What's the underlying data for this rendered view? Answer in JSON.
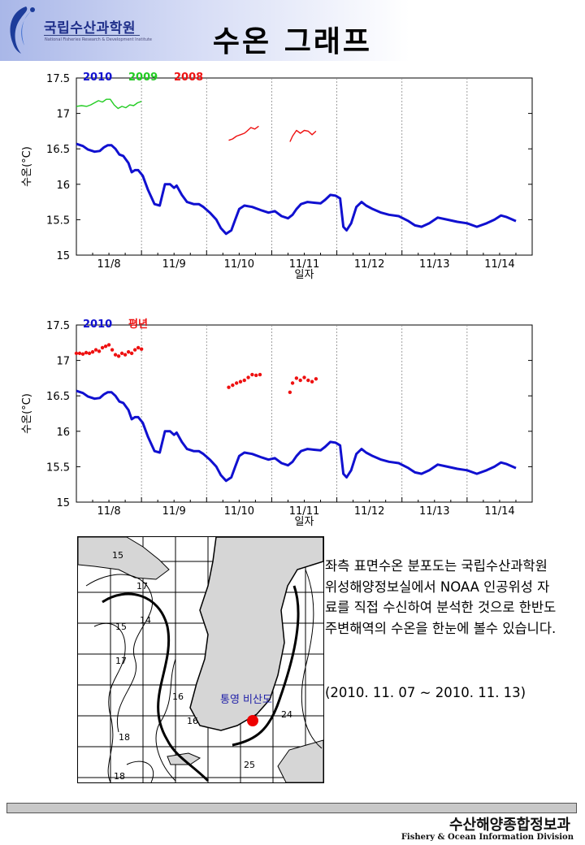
{
  "header": {
    "org_name": "국립수산과학원",
    "org_subtitle": "National Fisheries Research & Development Institute",
    "title": "수온 그래프"
  },
  "colors": {
    "series_2010": "#1010d0",
    "series_2009": "#22cc22",
    "series_2008": "#ee1111",
    "series_normal": "#ee1111",
    "grid": "#888888"
  },
  "chart_data": [
    {
      "type": "line",
      "xlabel": "일자",
      "ylabel": "수온(°C)",
      "ylim": [
        15,
        17.5
      ],
      "yticks": [
        "15",
        "15.5",
        "16",
        "16.5",
        "17",
        "17.5"
      ],
      "xticks": [
        "11/8",
        "11/9",
        "11/10",
        "11/11",
        "11/12",
        "11/13",
        "11/14"
      ],
      "xlim_days": [
        0,
        7
      ],
      "grid": "vertical dotted at day boundaries",
      "legend_position": "top-left",
      "series": [
        {
          "name": "2010",
          "color": "#1010d0",
          "style": "line",
          "points": [
            [
              0,
              16.57
            ],
            [
              0.1,
              16.54
            ],
            [
              0.18,
              16.49
            ],
            [
              0.28,
              16.46
            ],
            [
              0.36,
              16.47
            ],
            [
              0.42,
              16.52
            ],
            [
              0.48,
              16.55
            ],
            [
              0.54,
              16.55
            ],
            [
              0.6,
              16.5
            ],
            [
              0.66,
              16.42
            ],
            [
              0.72,
              16.4
            ],
            [
              0.8,
              16.3
            ],
            [
              0.85,
              16.17
            ],
            [
              0.9,
              16.2
            ],
            [
              0.95,
              16.2
            ],
            [
              1.02,
              16.12
            ],
            [
              1.1,
              15.92
            ],
            [
              1.2,
              15.72
            ],
            [
              1.28,
              15.7
            ],
            [
              1.36,
              16.0
            ],
            [
              1.44,
              16.0
            ],
            [
              1.5,
              15.95
            ],
            [
              1.54,
              15.98
            ],
            [
              1.62,
              15.85
            ],
            [
              1.7,
              15.75
            ],
            [
              1.8,
              15.72
            ],
            [
              1.88,
              15.72
            ],
            [
              1.95,
              15.68
            ],
            [
              2.05,
              15.6
            ],
            [
              2.15,
              15.5
            ],
            [
              2.22,
              15.38
            ],
            [
              2.3,
              15.3
            ],
            [
              2.38,
              15.35
            ],
            [
              2.44,
              15.5
            ],
            [
              2.5,
              15.65
            ],
            [
              2.58,
              15.7
            ],
            [
              2.7,
              15.68
            ],
            [
              2.85,
              15.63
            ],
            [
              2.95,
              15.6
            ],
            [
              3.05,
              15.62
            ],
            [
              3.15,
              15.55
            ],
            [
              3.25,
              15.52
            ],
            [
              3.32,
              15.57
            ],
            [
              3.38,
              15.65
            ],
            [
              3.45,
              15.72
            ],
            [
              3.55,
              15.75
            ],
            [
              3.65,
              15.74
            ],
            [
              3.75,
              15.73
            ],
            [
              3.82,
              15.78
            ],
            [
              3.9,
              15.85
            ],
            [
              3.98,
              15.84
            ],
            [
              4.05,
              15.8
            ],
            [
              4.1,
              15.4
            ],
            [
              4.15,
              15.35
            ],
            [
              4.22,
              15.45
            ],
            [
              4.3,
              15.68
            ],
            [
              4.38,
              15.75
            ],
            [
              4.45,
              15.7
            ],
            [
              4.55,
              15.65
            ],
            [
              4.68,
              15.6
            ],
            [
              4.8,
              15.57
            ],
            [
              4.95,
              15.55
            ],
            [
              5.1,
              15.48
            ],
            [
              5.2,
              15.42
            ],
            [
              5.3,
              15.4
            ],
            [
              5.42,
              15.45
            ],
            [
              5.55,
              15.53
            ],
            [
              5.7,
              15.5
            ],
            [
              5.85,
              15.47
            ],
            [
              6.0,
              15.45
            ],
            [
              6.15,
              15.4
            ],
            [
              6.3,
              15.45
            ],
            [
              6.42,
              15.5
            ],
            [
              6.52,
              15.56
            ],
            [
              6.6,
              15.54
            ],
            [
              6.7,
              15.5
            ],
            [
              6.75,
              15.48
            ]
          ]
        },
        {
          "name": "2009",
          "color": "#22cc22",
          "style": "line",
          "points": [
            [
              0,
              17.1
            ],
            [
              0.08,
              17.11
            ],
            [
              0.16,
              17.1
            ],
            [
              0.22,
              17.12
            ],
            [
              0.28,
              17.15
            ],
            [
              0.34,
              17.18
            ],
            [
              0.4,
              17.16
            ],
            [
              0.46,
              17.2
            ],
            [
              0.52,
              17.2
            ],
            [
              0.58,
              17.12
            ],
            [
              0.64,
              17.07
            ],
            [
              0.7,
              17.1
            ],
            [
              0.76,
              17.08
            ],
            [
              0.82,
              17.12
            ],
            [
              0.88,
              17.11
            ],
            [
              0.94,
              17.15
            ],
            [
              1.0,
              17.17
            ]
          ]
        },
        {
          "name": "2008",
          "color": "#ee1111",
          "style": "line",
          "points": [
            [
              2.34,
              16.62
            ],
            [
              2.4,
              16.64
            ],
            [
              2.46,
              16.68
            ],
            [
              2.52,
              16.7
            ],
            [
              2.58,
              16.72
            ],
            [
              2.62,
              16.75
            ],
            [
              2.68,
              16.8
            ],
            [
              2.74,
              16.78
            ],
            [
              2.8,
              16.82
            ],
            [
              3.28,
              16.6
            ],
            [
              3.32,
              16.68
            ],
            [
              3.38,
              16.76
            ],
            [
              3.44,
              16.72
            ],
            [
              3.5,
              16.76
            ],
            [
              3.56,
              16.75
            ],
            [
              3.62,
              16.7
            ],
            [
              3.68,
              16.75
            ]
          ]
        }
      ]
    },
    {
      "type": "line",
      "xlabel": "일자",
      "ylabel": "수온(°C)",
      "ylim": [
        15,
        17.5
      ],
      "yticks": [
        "15",
        "15.5",
        "16",
        "16.5",
        "17",
        "17.5"
      ],
      "xticks": [
        "11/8",
        "11/9",
        "11/10",
        "11/11",
        "11/12",
        "11/13",
        "11/14"
      ],
      "xlim_days": [
        0,
        7
      ],
      "grid": "vertical dotted at day boundaries",
      "legend_position": "top-left",
      "series": [
        {
          "name": "2010",
          "color": "#1010d0",
          "style": "line",
          "points": [
            [
              0,
              16.57
            ],
            [
              0.1,
              16.54
            ],
            [
              0.18,
              16.49
            ],
            [
              0.28,
              16.46
            ],
            [
              0.36,
              16.47
            ],
            [
              0.42,
              16.52
            ],
            [
              0.48,
              16.55
            ],
            [
              0.54,
              16.55
            ],
            [
              0.6,
              16.5
            ],
            [
              0.66,
              16.42
            ],
            [
              0.72,
              16.4
            ],
            [
              0.8,
              16.3
            ],
            [
              0.85,
              16.17
            ],
            [
              0.9,
              16.2
            ],
            [
              0.95,
              16.2
            ],
            [
              1.02,
              16.12
            ],
            [
              1.1,
              15.92
            ],
            [
              1.2,
              15.72
            ],
            [
              1.28,
              15.7
            ],
            [
              1.36,
              16.0
            ],
            [
              1.44,
              16.0
            ],
            [
              1.5,
              15.95
            ],
            [
              1.54,
              15.98
            ],
            [
              1.62,
              15.85
            ],
            [
              1.7,
              15.75
            ],
            [
              1.8,
              15.72
            ],
            [
              1.88,
              15.72
            ],
            [
              1.95,
              15.68
            ],
            [
              2.05,
              15.6
            ],
            [
              2.15,
              15.5
            ],
            [
              2.22,
              15.38
            ],
            [
              2.3,
              15.3
            ],
            [
              2.38,
              15.35
            ],
            [
              2.44,
              15.5
            ],
            [
              2.5,
              15.65
            ],
            [
              2.58,
              15.7
            ],
            [
              2.7,
              15.68
            ],
            [
              2.85,
              15.63
            ],
            [
              2.95,
              15.6
            ],
            [
              3.05,
              15.62
            ],
            [
              3.15,
              15.55
            ],
            [
              3.25,
              15.52
            ],
            [
              3.32,
              15.57
            ],
            [
              3.38,
              15.65
            ],
            [
              3.45,
              15.72
            ],
            [
              3.55,
              15.75
            ],
            [
              3.65,
              15.74
            ],
            [
              3.75,
              15.73
            ],
            [
              3.82,
              15.78
            ],
            [
              3.9,
              15.85
            ],
            [
              3.98,
              15.84
            ],
            [
              4.05,
              15.8
            ],
            [
              4.1,
              15.4
            ],
            [
              4.15,
              15.35
            ],
            [
              4.22,
              15.45
            ],
            [
              4.3,
              15.68
            ],
            [
              4.38,
              15.75
            ],
            [
              4.45,
              15.7
            ],
            [
              4.55,
              15.65
            ],
            [
              4.68,
              15.6
            ],
            [
              4.8,
              15.57
            ],
            [
              4.95,
              15.55
            ],
            [
              5.1,
              15.48
            ],
            [
              5.2,
              15.42
            ],
            [
              5.3,
              15.4
            ],
            [
              5.42,
              15.45
            ],
            [
              5.55,
              15.53
            ],
            [
              5.7,
              15.5
            ],
            [
              5.85,
              15.47
            ],
            [
              6.0,
              15.45
            ],
            [
              6.15,
              15.4
            ],
            [
              6.3,
              15.45
            ],
            [
              6.42,
              15.5
            ],
            [
              6.52,
              15.56
            ],
            [
              6.6,
              15.54
            ],
            [
              6.7,
              15.5
            ],
            [
              6.75,
              15.48
            ]
          ]
        },
        {
          "name": "평년",
          "color": "#ee1111",
          "style": "dots",
          "points": [
            [
              0,
              17.1
            ],
            [
              0.05,
              17.1
            ],
            [
              0.1,
              17.09
            ],
            [
              0.15,
              17.11
            ],
            [
              0.2,
              17.1
            ],
            [
              0.25,
              17.12
            ],
            [
              0.3,
              17.15
            ],
            [
              0.35,
              17.13
            ],
            [
              0.4,
              17.18
            ],
            [
              0.45,
              17.2
            ],
            [
              0.5,
              17.22
            ],
            [
              0.55,
              17.15
            ],
            [
              0.6,
              17.08
            ],
            [
              0.65,
              17.06
            ],
            [
              0.7,
              17.1
            ],
            [
              0.75,
              17.08
            ],
            [
              0.8,
              17.12
            ],
            [
              0.85,
              17.1
            ],
            [
              0.9,
              17.15
            ],
            [
              0.95,
              17.18
            ],
            [
              1.0,
              17.16
            ],
            [
              2.34,
              16.62
            ],
            [
              2.4,
              16.65
            ],
            [
              2.46,
              16.68
            ],
            [
              2.52,
              16.7
            ],
            [
              2.58,
              16.72
            ],
            [
              2.64,
              16.76
            ],
            [
              2.7,
              16.8
            ],
            [
              2.76,
              16.79
            ],
            [
              2.82,
              16.8
            ],
            [
              3.28,
              16.55
            ],
            [
              3.32,
              16.68
            ],
            [
              3.38,
              16.75
            ],
            [
              3.44,
              16.72
            ],
            [
              3.5,
              16.76
            ],
            [
              3.56,
              16.72
            ],
            [
              3.62,
              16.7
            ],
            [
              3.68,
              16.74
            ]
          ]
        }
      ]
    }
  ],
  "map": {
    "station_label": "통영 비산도",
    "contour_labels": [
      "15",
      "17",
      "14",
      "15",
      "17",
      "16",
      "18",
      "18",
      "16",
      "24",
      "25"
    ]
  },
  "description": {
    "text": "좌측 표면수온 분포도는 국립수산과학원 위성해양정보실에서 NOAA 인공위성 자료를 직접 수신하여 분석한 것으로 한반도 주변해역의 수온을 한눈에 볼수 있습니다.",
    "period": "(2010. 11. 07 ~ 2010. 11. 13)"
  },
  "footer": {
    "division_kr": "수산해양종합정보과",
    "division_en": "Fishery & Ocean Information Division"
  }
}
